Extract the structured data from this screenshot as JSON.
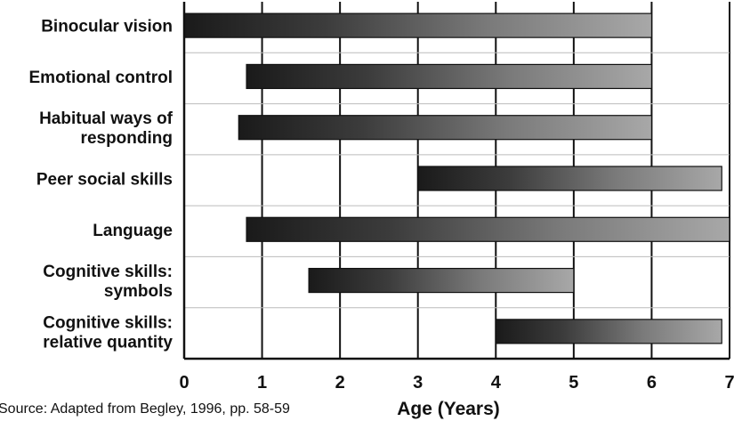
{
  "chart_data": {
    "type": "bar",
    "orientation": "horizontal",
    "title": "",
    "xlabel": "Age (Years)",
    "ylabel": "",
    "xlim": [
      0,
      7
    ],
    "x_ticks": [
      "0",
      "1",
      "2",
      "3",
      "4",
      "5",
      "6",
      "7"
    ],
    "grid": "vertical",
    "categories": [
      [
        "Binocular vision"
      ],
      [
        "Emotional control"
      ],
      [
        "Habitual ways of",
        "responding"
      ],
      [
        "Peer social skills"
      ],
      [
        "Language"
      ],
      [
        "Cognitive skills:",
        "symbols"
      ],
      [
        "Cognitive skills:",
        "relative quantity"
      ]
    ],
    "ranges": [
      {
        "start": 0.0,
        "end": 6.0
      },
      {
        "start": 0.8,
        "end": 6.0
      },
      {
        "start": 0.7,
        "end": 6.0
      },
      {
        "start": 3.0,
        "end": 6.9
      },
      {
        "start": 0.8,
        "end": 7.0
      },
      {
        "start": 1.6,
        "end": 5.0
      },
      {
        "start": 4.0,
        "end": 6.9
      }
    ],
    "source": "Source: Adapted from Begley, 1996, pp. 58-59"
  }
}
